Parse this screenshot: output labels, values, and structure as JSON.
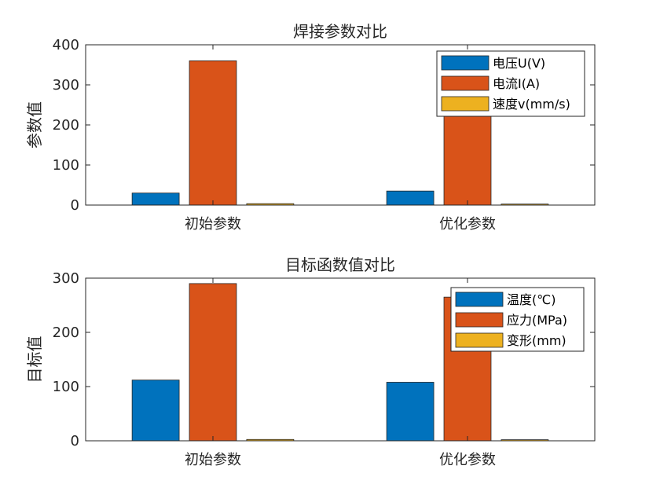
{
  "chart_data": [
    {
      "type": "bar",
      "title": "焊接参数对比",
      "ylabel": "参数值",
      "categories": [
        "初始参数",
        "优化参数"
      ],
      "ylim": [
        0,
        400
      ],
      "yticks": [
        0,
        100,
        200,
        300,
        400
      ],
      "legend_position": "top-right",
      "series": [
        {
          "name": "电压U(V)",
          "color": "#0072BD",
          "values": [
            30,
            35
          ]
        },
        {
          "name": "电流I(A)",
          "color": "#D95319",
          "values": [
            360,
            325
          ]
        },
        {
          "name": "速度v(mm/s)",
          "color": "#EDB120",
          "values": [
            3.5,
            2.5
          ]
        }
      ]
    },
    {
      "type": "bar",
      "title": "目标函数值对比",
      "ylabel": "目标值",
      "categories": [
        "初始参数",
        "优化参数"
      ],
      "ylim": [
        0,
        300
      ],
      "yticks": [
        0,
        100,
        200,
        300
      ],
      "legend_position": "top-right",
      "series": [
        {
          "name": "温度(℃)",
          "color": "#0072BD",
          "values": [
            112,
            108
          ]
        },
        {
          "name": "应力(MPa)",
          "color": "#D95319",
          "values": [
            290,
            265
          ]
        },
        {
          "name": "变形(mm)",
          "color": "#EDB120",
          "values": [
            2.5,
            2.0
          ]
        }
      ]
    }
  ]
}
